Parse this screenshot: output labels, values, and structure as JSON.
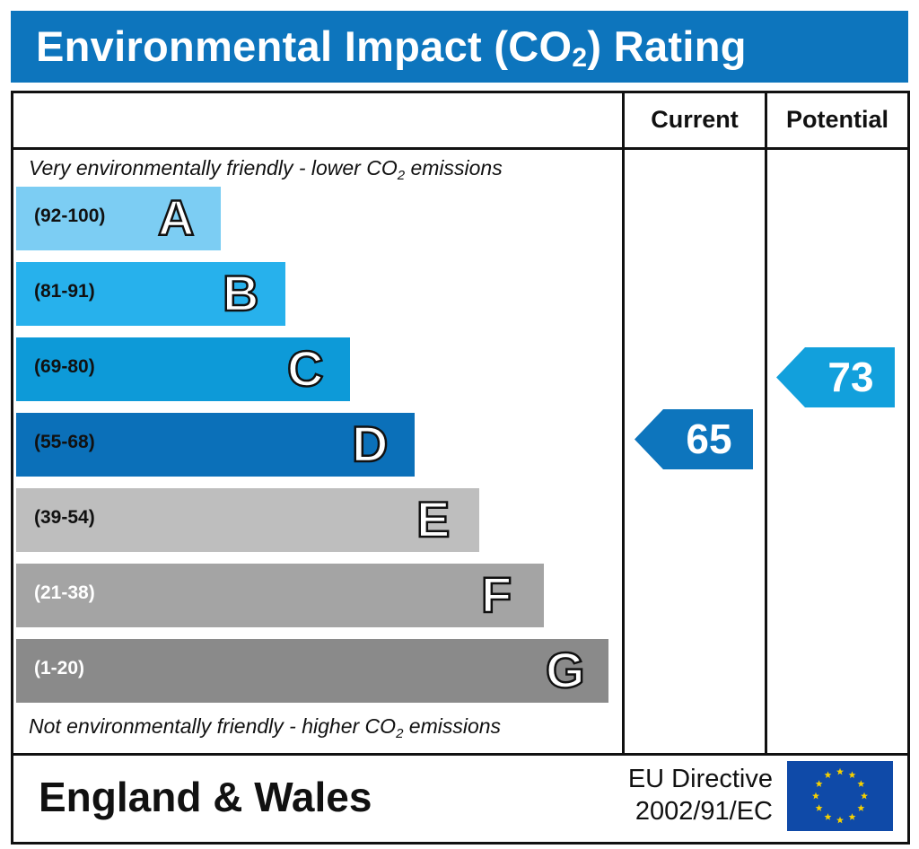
{
  "title": {
    "prefix": "Environmental Impact (CO",
    "sub": "2",
    "suffix": ") Rating"
  },
  "columns": {
    "current": "Current",
    "potential": "Potential"
  },
  "captions": {
    "top": {
      "prefix": "Very environmentally friendly - lower CO",
      "sub": "2",
      "suffix": " emissions"
    },
    "bottom": {
      "prefix": "Not environmentally friendly - higher CO",
      "sub": "2",
      "suffix": " emissions"
    }
  },
  "chart_data": {
    "type": "bar",
    "categories": [
      "A",
      "B",
      "C",
      "D",
      "E",
      "F",
      "G"
    ],
    "ranges": [
      "(92-100)",
      "(81-91)",
      "(69-80)",
      "(55-68)",
      "(39-54)",
      "(21-38)",
      "(1-20)"
    ],
    "band_lengths": [
      1,
      2,
      3,
      4,
      5,
      6,
      7
    ],
    "colors": [
      "#7ccdf3",
      "#27b1ec",
      "#0d9ad8",
      "#0b70b9",
      "#bebebe",
      "#a4a4a4",
      "#8a8a8a"
    ],
    "range_text_colors": [
      "#111111",
      "#111111",
      "#111111",
      "#111111",
      "#111111",
      "#ffffff",
      "#ffffff"
    ],
    "current": {
      "value": 65,
      "band": "D",
      "color": "#0d75bd"
    },
    "potential": {
      "value": 73,
      "band": "C",
      "color": "#12a0dc"
    }
  },
  "footer": {
    "region": "England & Wales",
    "directive_line1": "EU Directive",
    "directive_line2": "2002/91/EC",
    "flag_icon": "eu-flag-icon"
  }
}
